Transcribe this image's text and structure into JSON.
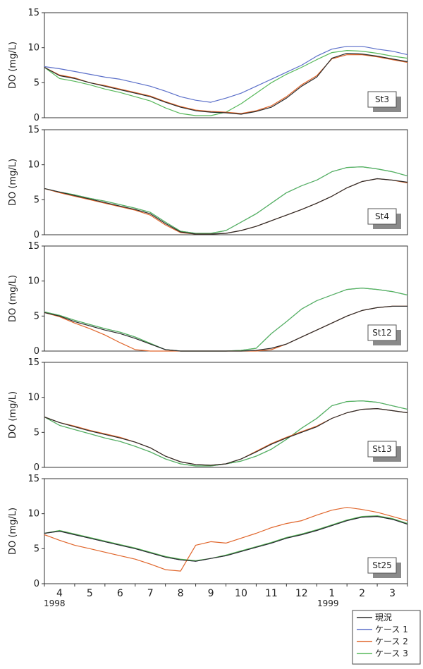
{
  "chart_data": {
    "type": "line",
    "ylabel": "DO (mg/L)",
    "ylim": [
      0,
      15
    ],
    "yticks": [
      0,
      5,
      10,
      15
    ],
    "months": [
      "4",
      "5",
      "6",
      "7",
      "8",
      "9",
      "10",
      "11",
      "12",
      "1",
      "2",
      "3"
    ],
    "year_labels": [
      "1998",
      "1999"
    ],
    "legend": [
      {
        "name": "現況",
        "color": "#2b2b2b"
      },
      {
        "name": "ケース 1",
        "color": "#5b6fc9"
      },
      {
        "name": "ケース 2",
        "color": "#e0652a"
      },
      {
        "name": "ケース 3",
        "color": "#57b85a"
      }
    ],
    "x": [
      3.5,
      4.0,
      4.5,
      5.0,
      5.5,
      6.0,
      6.5,
      7.0,
      7.5,
      8.0,
      8.5,
      9.0,
      9.5,
      10.0,
      10.5,
      11.0,
      11.5,
      12.0,
      12.5,
      13.0,
      13.5,
      14.0,
      14.5,
      15.0,
      15.5
    ],
    "panels": [
      {
        "station": "St3",
        "series": [
          {
            "name": "現況",
            "values": [
              7.2,
              6.0,
              5.6,
              5.0,
              4.5,
              4.0,
              3.5,
              3.0,
              2.2,
              1.5,
              1.0,
              0.8,
              0.7,
              0.5,
              0.9,
              1.5,
              2.8,
              4.5,
              5.8,
              8.5,
              9.2,
              9.1,
              8.8,
              8.4,
              8.0
            ]
          },
          {
            "name": "ケース 1",
            "values": [
              7.3,
              7.0,
              6.6,
              6.2,
              5.8,
              5.5,
              5.0,
              4.5,
              3.8,
              3.0,
              2.5,
              2.2,
              2.8,
              3.5,
              4.5,
              5.5,
              6.5,
              7.5,
              8.8,
              9.8,
              10.2,
              10.2,
              9.8,
              9.5,
              9.0
            ]
          },
          {
            "name": "ケース 2",
            "values": [
              7.2,
              6.1,
              5.7,
              5.0,
              4.6,
              4.1,
              3.6,
              3.1,
              2.3,
              1.6,
              1.1,
              0.9,
              0.8,
              0.6,
              1.0,
              1.7,
              3.0,
              4.7,
              6.0,
              8.4,
              9.0,
              9.0,
              8.7,
              8.3,
              7.9
            ]
          },
          {
            "name": "ケース 3",
            "values": [
              7.2,
              5.6,
              5.2,
              4.7,
              4.1,
              3.6,
              3.0,
              2.4,
              1.4,
              0.6,
              0.3,
              0.3,
              0.8,
              2.0,
              3.5,
              5.0,
              6.2,
              7.2,
              8.3,
              9.3,
              9.6,
              9.5,
              9.2,
              8.8,
              8.5
            ]
          }
        ]
      },
      {
        "station": "St4",
        "series": [
          {
            "name": "現況",
            "values": [
              6.6,
              6.1,
              5.6,
              5.1,
              4.6,
              4.1,
              3.6,
              3.0,
              1.6,
              0.4,
              0.1,
              0.1,
              0.2,
              0.6,
              1.2,
              2.0,
              2.8,
              3.6,
              4.5,
              5.5,
              6.7,
              7.6,
              8.0,
              7.8,
              7.5
            ]
          },
          {
            "name": "ケース 1",
            "values": [
              6.6,
              6.1,
              5.7,
              5.2,
              4.8,
              4.3,
              3.8,
              3.2,
              1.8,
              0.5,
              0.2,
              0.2,
              0.6,
              1.8,
              3.0,
              4.5,
              6.0,
              7.0,
              7.8,
              9.0,
              9.6,
              9.7,
              9.4,
              9.0,
              8.4
            ]
          },
          {
            "name": "ケース 2",
            "values": [
              6.6,
              6.0,
              5.5,
              5.0,
              4.5,
              4.0,
              3.5,
              2.8,
              1.4,
              0.3,
              0.1,
              0.1,
              0.2,
              0.6,
              1.2,
              2.0,
              2.8,
              3.6,
              4.5,
              5.5,
              6.7,
              7.6,
              8.0,
              7.8,
              7.4
            ]
          },
          {
            "name": "ケース 3",
            "values": [
              6.6,
              6.1,
              5.7,
              5.2,
              4.8,
              4.3,
              3.8,
              3.2,
              1.8,
              0.5,
              0.2,
              0.2,
              0.6,
              1.8,
              3.0,
              4.5,
              6.0,
              7.0,
              7.8,
              9.0,
              9.6,
              9.7,
              9.4,
              9.0,
              8.4
            ]
          }
        ]
      },
      {
        "station": "St12",
        "series": [
          {
            "name": "現況",
            "values": [
              5.5,
              5.0,
              4.2,
              3.6,
              3.0,
              2.5,
              1.8,
              1.0,
              0.2,
              0.0,
              0.0,
              0.0,
              0.0,
              0.0,
              0.1,
              0.4,
              1.0,
              2.0,
              3.0,
              4.0,
              5.0,
              5.8,
              6.2,
              6.4,
              6.4
            ]
          },
          {
            "name": "ケース 1",
            "values": [
              5.6,
              5.1,
              4.4,
              3.8,
              3.2,
              2.7,
              2.0,
              1.1,
              0.2,
              0.0,
              0.0,
              0.0,
              0.0,
              0.1,
              0.4,
              2.5,
              4.2,
              6.0,
              7.2,
              8.0,
              8.8,
              9.0,
              8.8,
              8.5,
              8.0
            ]
          },
          {
            "name": "ケース 2",
            "values": [
              5.5,
              4.9,
              4.0,
              3.2,
              2.3,
              1.2,
              0.2,
              0.0,
              0.0,
              0.0,
              0.0,
              0.0,
              0.0,
              0.0,
              0.0,
              0.2,
              1.0,
              2.0,
              3.0,
              4.0,
              5.0,
              5.8,
              6.2,
              6.4,
              6.4
            ]
          },
          {
            "name": "ケース 3",
            "values": [
              5.6,
              5.1,
              4.4,
              3.8,
              3.2,
              2.7,
              2.0,
              1.1,
              0.2,
              0.0,
              0.0,
              0.0,
              0.0,
              0.1,
              0.4,
              2.5,
              4.2,
              6.0,
              7.2,
              8.0,
              8.8,
              9.0,
              8.8,
              8.5,
              8.0
            ]
          }
        ]
      },
      {
        "station": "St13",
        "series": [
          {
            "name": "現況",
            "values": [
              7.2,
              6.4,
              5.8,
              5.2,
              4.7,
              4.2,
              3.6,
              2.8,
              1.6,
              0.8,
              0.4,
              0.3,
              0.5,
              1.2,
              2.2,
              3.3,
              4.2,
              5.0,
              5.8,
              7.0,
              7.8,
              8.3,
              8.4,
              8.1,
              7.8
            ]
          },
          {
            "name": "ケース 1",
            "values": [
              7.2,
              6.0,
              5.4,
              4.8,
              4.2,
              3.7,
              3.0,
              2.2,
              1.2,
              0.5,
              0.2,
              0.2,
              0.5,
              0.9,
              1.6,
              2.6,
              4.0,
              5.6,
              7.0,
              8.8,
              9.4,
              9.5,
              9.3,
              8.8,
              8.3
            ]
          },
          {
            "name": "ケース 2",
            "values": [
              7.2,
              6.4,
              5.9,
              5.3,
              4.8,
              4.3,
              3.6,
              2.8,
              1.6,
              0.8,
              0.4,
              0.3,
              0.5,
              1.2,
              2.3,
              3.4,
              4.3,
              5.1,
              5.9,
              7.0,
              7.8,
              8.3,
              8.4,
              8.1,
              7.8
            ]
          },
          {
            "name": "ケース 3",
            "values": [
              7.2,
              6.0,
              5.4,
              4.8,
              4.2,
              3.7,
              3.0,
              2.2,
              1.2,
              0.5,
              0.2,
              0.2,
              0.5,
              0.9,
              1.6,
              2.6,
              4.0,
              5.6,
              7.0,
              8.8,
              9.4,
              9.5,
              9.3,
              8.8,
              8.3
            ]
          }
        ]
      },
      {
        "station": "St25",
        "series": [
          {
            "name": "現況",
            "values": [
              7.2,
              7.5,
              7.0,
              6.5,
              6.0,
              5.5,
              5.0,
              4.4,
              3.8,
              3.4,
              3.2,
              3.6,
              4.0,
              4.6,
              5.2,
              5.8,
              6.5,
              7.0,
              7.6,
              8.3,
              9.0,
              9.5,
              9.6,
              9.2,
              8.5
            ]
          },
          {
            "name": "ケース 1",
            "values": [
              7.2,
              7.5,
              7.0,
              6.5,
              6.0,
              5.5,
              5.0,
              4.4,
              3.8,
              3.4,
              3.2,
              3.6,
              4.0,
              4.6,
              5.2,
              5.8,
              6.5,
              7.0,
              7.6,
              8.3,
              9.0,
              9.5,
              9.6,
              9.2,
              8.5
            ]
          },
          {
            "name": "ケース 2",
            "values": [
              7.0,
              6.2,
              5.5,
              5.0,
              4.5,
              4.0,
              3.5,
              2.8,
              2.0,
              1.8,
              5.5,
              6.0,
              5.8,
              6.5,
              7.2,
              8.0,
              8.6,
              9.0,
              9.8,
              10.5,
              10.9,
              10.6,
              10.2,
              9.6,
              9.0
            ]
          },
          {
            "name": "ケース 3",
            "values": [
              7.2,
              7.6,
              7.1,
              6.6,
              6.1,
              5.6,
              5.1,
              4.5,
              3.9,
              3.5,
              3.3,
              3.6,
              4.1,
              4.7,
              5.3,
              5.9,
              6.6,
              7.1,
              7.7,
              8.4,
              9.1,
              9.6,
              9.7,
              9.3,
              8.6
            ]
          }
        ]
      }
    ]
  }
}
